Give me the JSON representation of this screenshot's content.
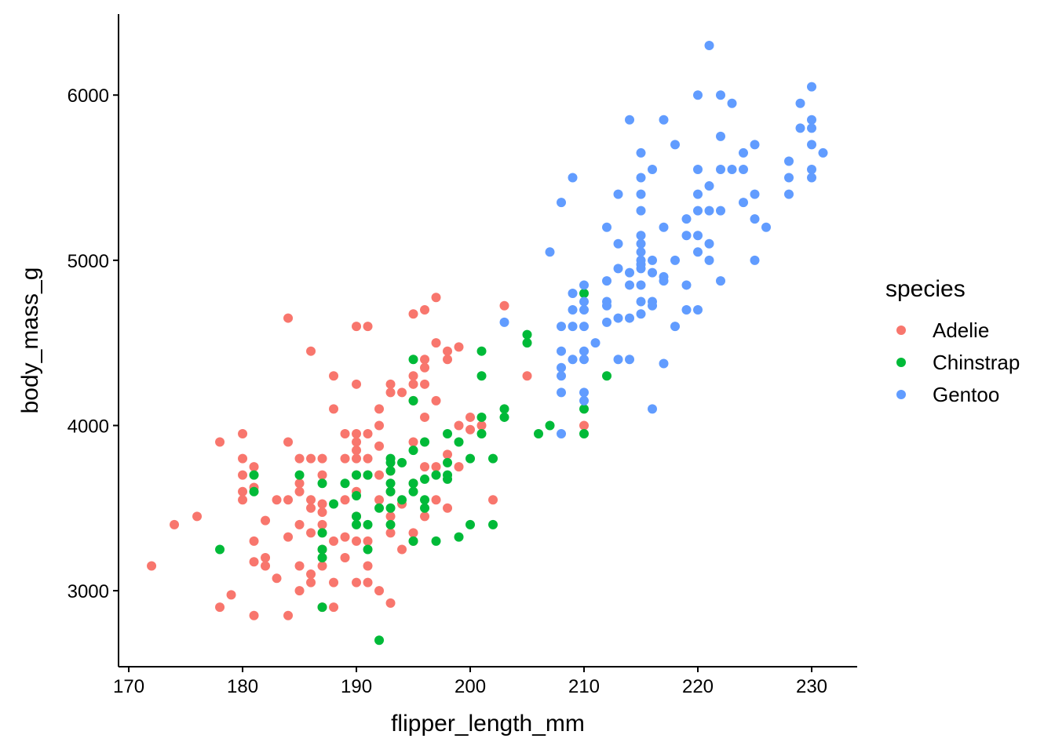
{
  "chart_data": {
    "type": "scatter",
    "title": "",
    "xlabel": "flipper_length_mm",
    "ylabel": "body_mass_g",
    "xlim": [
      169.1,
      234.0
    ],
    "ylim": [
      2540,
      6490
    ],
    "x_ticks": [
      170,
      180,
      190,
      200,
      210,
      220,
      230
    ],
    "y_ticks": [
      3000,
      4000,
      5000,
      6000
    ],
    "grid": false,
    "legend": {
      "title": "species",
      "placement": "right"
    },
    "series": [
      {
        "name": "Adelie",
        "color": "#F8766D",
        "points": [
          [
            172,
            3150
          ],
          [
            174,
            3400
          ],
          [
            176,
            3450
          ],
          [
            178,
            3900
          ],
          [
            178,
            2900
          ],
          [
            179,
            2975
          ],
          [
            180,
            3950
          ],
          [
            180,
            3800
          ],
          [
            180,
            3700
          ],
          [
            180,
            3600
          ],
          [
            180,
            3550
          ],
          [
            181,
            3750
          ],
          [
            181,
            3625
          ],
          [
            181,
            3300
          ],
          [
            181,
            3175
          ],
          [
            181,
            2850
          ],
          [
            182,
            3425
          ],
          [
            182,
            3200
          ],
          [
            182,
            3150
          ],
          [
            183,
            3550
          ],
          [
            183,
            3075
          ],
          [
            184,
            4650
          ],
          [
            184,
            3900
          ],
          [
            184,
            3550
          ],
          [
            184,
            3325
          ],
          [
            184,
            2850
          ],
          [
            185,
            3800
          ],
          [
            185,
            3650
          ],
          [
            185,
            3600
          ],
          [
            185,
            3400
          ],
          [
            185,
            3150
          ],
          [
            185,
            3000
          ],
          [
            186,
            4450
          ],
          [
            186,
            3800
          ],
          [
            186,
            3550
          ],
          [
            186,
            3500
          ],
          [
            186,
            3350
          ],
          [
            186,
            3100
          ],
          [
            186,
            3050
          ],
          [
            187,
            3800
          ],
          [
            187,
            3700
          ],
          [
            187,
            3525
          ],
          [
            187,
            3475
          ],
          [
            187,
            3400
          ],
          [
            187,
            3250
          ],
          [
            187,
            3150
          ],
          [
            187,
            2900
          ],
          [
            188,
            4300
          ],
          [
            188,
            4100
          ],
          [
            188,
            3300
          ],
          [
            188,
            3050
          ],
          [
            188,
            2900
          ],
          [
            189,
            3950
          ],
          [
            189,
            3800
          ],
          [
            189,
            3550
          ],
          [
            189,
            3325
          ],
          [
            189,
            3200
          ],
          [
            190,
            4600
          ],
          [
            190,
            4250
          ],
          [
            190,
            3950
          ],
          [
            190,
            3900
          ],
          [
            190,
            3850
          ],
          [
            190,
            3800
          ],
          [
            190,
            3700
          ],
          [
            190,
            3600
          ],
          [
            190,
            3450
          ],
          [
            190,
            3300
          ],
          [
            190,
            3050
          ],
          [
            191,
            4600
          ],
          [
            191,
            3950
          ],
          [
            191,
            3800
          ],
          [
            191,
            3700
          ],
          [
            191,
            3300
          ],
          [
            191,
            3150
          ],
          [
            191,
            3050
          ],
          [
            192,
            4100
          ],
          [
            192,
            4000
          ],
          [
            192,
            3875
          ],
          [
            192,
            3700
          ],
          [
            192,
            3550
          ],
          [
            192,
            3000
          ],
          [
            193,
            4250
          ],
          [
            193,
            4200
          ],
          [
            193,
            3725
          ],
          [
            193,
            3600
          ],
          [
            193,
            3450
          ],
          [
            193,
            3350
          ],
          [
            193,
            2925
          ],
          [
            194,
            4200
          ],
          [
            194,
            3525
          ],
          [
            194,
            3250
          ],
          [
            195,
            4675
          ],
          [
            195,
            4300
          ],
          [
            195,
            4250
          ],
          [
            195,
            4150
          ],
          [
            195,
            3900
          ],
          [
            195,
            3650
          ],
          [
            195,
            3350
          ],
          [
            195,
            3300
          ],
          [
            196,
            4700
          ],
          [
            196,
            4400
          ],
          [
            196,
            4350
          ],
          [
            196,
            4250
          ],
          [
            196,
            4050
          ],
          [
            196,
            3750
          ],
          [
            196,
            3450
          ],
          [
            197,
            4775
          ],
          [
            197,
            4500
          ],
          [
            197,
            4150
          ],
          [
            197,
            3750
          ],
          [
            197,
            3550
          ],
          [
            198,
            4450
          ],
          [
            198,
            4400
          ],
          [
            198,
            3825
          ],
          [
            198,
            3500
          ],
          [
            199,
            4475
          ],
          [
            199,
            4000
          ],
          [
            199,
            3750
          ],
          [
            200,
            4050
          ],
          [
            200,
            3975
          ],
          [
            201,
            4000
          ],
          [
            202,
            3550
          ],
          [
            203,
            4725
          ],
          [
            205,
            4300
          ],
          [
            210,
            4000
          ]
        ]
      },
      {
        "name": "Chinstrap",
        "color": "#00BA38",
        "points": [
          [
            178,
            3250
          ],
          [
            181,
            3700
          ],
          [
            181,
            3600
          ],
          [
            185,
            3700
          ],
          [
            187,
            3650
          ],
          [
            187,
            3350
          ],
          [
            187,
            3250
          ],
          [
            187,
            3200
          ],
          [
            187,
            2900
          ],
          [
            188,
            3525
          ],
          [
            189,
            3650
          ],
          [
            190,
            3700
          ],
          [
            190,
            3575
          ],
          [
            190,
            3450
          ],
          [
            190,
            3400
          ],
          [
            191,
            3700
          ],
          [
            191,
            3400
          ],
          [
            191,
            3250
          ],
          [
            192,
            3500
          ],
          [
            192,
            2700
          ],
          [
            193,
            3800
          ],
          [
            193,
            3775
          ],
          [
            193,
            3725
          ],
          [
            193,
            3650
          ],
          [
            193,
            3600
          ],
          [
            193,
            3500
          ],
          [
            193,
            3400
          ],
          [
            194,
            3775
          ],
          [
            194,
            3550
          ],
          [
            195,
            4400
          ],
          [
            195,
            4150
          ],
          [
            195,
            3850
          ],
          [
            195,
            3650
          ],
          [
            195,
            3600
          ],
          [
            195,
            3300
          ],
          [
            196,
            3900
          ],
          [
            196,
            3675
          ],
          [
            196,
            3550
          ],
          [
            196,
            3500
          ],
          [
            197,
            3700
          ],
          [
            197,
            3300
          ],
          [
            198,
            3950
          ],
          [
            198,
            3775
          ],
          [
            198,
            3700
          ],
          [
            198,
            3675
          ],
          [
            199,
            3900
          ],
          [
            199,
            3325
          ],
          [
            200,
            3800
          ],
          [
            200,
            3400
          ],
          [
            201,
            4450
          ],
          [
            201,
            4300
          ],
          [
            201,
            4050
          ],
          [
            201,
            3950
          ],
          [
            202,
            3800
          ],
          [
            202,
            3400
          ],
          [
            203,
            4100
          ],
          [
            203,
            4050
          ],
          [
            205,
            4550
          ],
          [
            205,
            4500
          ],
          [
            206,
            3950
          ],
          [
            207,
            4000
          ],
          [
            210,
            4800
          ],
          [
            210,
            4100
          ],
          [
            210,
            3950
          ],
          [
            212,
            4300
          ]
        ]
      },
      {
        "name": "Gentoo",
        "color": "#619CFF",
        "points": [
          [
            203,
            4625
          ],
          [
            207,
            5050
          ],
          [
            208,
            5350
          ],
          [
            208,
            4600
          ],
          [
            208,
            4450
          ],
          [
            208,
            4350
          ],
          [
            208,
            4300
          ],
          [
            208,
            4200
          ],
          [
            208,
            3950
          ],
          [
            209,
            5500
          ],
          [
            209,
            4800
          ],
          [
            209,
            4700
          ],
          [
            209,
            4600
          ],
          [
            209,
            4400
          ],
          [
            210,
            4850
          ],
          [
            210,
            4750
          ],
          [
            210,
            4700
          ],
          [
            210,
            4600
          ],
          [
            210,
            4450
          ],
          [
            210,
            4400
          ],
          [
            210,
            4200
          ],
          [
            210,
            4150
          ],
          [
            211,
            4500
          ],
          [
            212,
            5200
          ],
          [
            212,
            4875
          ],
          [
            212,
            4750
          ],
          [
            212,
            4725
          ],
          [
            212,
            4625
          ],
          [
            213,
            5400
          ],
          [
            213,
            5100
          ],
          [
            213,
            4950
          ],
          [
            213,
            4650
          ],
          [
            213,
            4400
          ],
          [
            214,
            5850
          ],
          [
            214,
            4925
          ],
          [
            214,
            4850
          ],
          [
            214,
            4650
          ],
          [
            214,
            4400
          ],
          [
            215,
            5650
          ],
          [
            215,
            5500
          ],
          [
            215,
            5400
          ],
          [
            215,
            5300
          ],
          [
            215,
            5150
          ],
          [
            215,
            5100
          ],
          [
            215,
            5050
          ],
          [
            215,
            5000
          ],
          [
            215,
            4975
          ],
          [
            215,
            4950
          ],
          [
            215,
            4850
          ],
          [
            215,
            4750
          ],
          [
            215,
            4675
          ],
          [
            216,
            5550
          ],
          [
            216,
            5000
          ],
          [
            216,
            4925
          ],
          [
            216,
            4750
          ],
          [
            216,
            4725
          ],
          [
            216,
            4100
          ],
          [
            217,
            5850
          ],
          [
            217,
            5200
          ],
          [
            217,
            4900
          ],
          [
            217,
            4875
          ],
          [
            217,
            4375
          ],
          [
            218,
            5700
          ],
          [
            218,
            5000
          ],
          [
            218,
            4600
          ],
          [
            219,
            5250
          ],
          [
            219,
            5150
          ],
          [
            219,
            4850
          ],
          [
            219,
            4700
          ],
          [
            220,
            6000
          ],
          [
            220,
            5550
          ],
          [
            220,
            5400
          ],
          [
            220,
            5300
          ],
          [
            220,
            5150
          ],
          [
            220,
            5050
          ],
          [
            220,
            4700
          ],
          [
            221,
            6300
          ],
          [
            221,
            5450
          ],
          [
            221,
            5300
          ],
          [
            221,
            5100
          ],
          [
            221,
            5000
          ],
          [
            222,
            6000
          ],
          [
            222,
            5750
          ],
          [
            222,
            5550
          ],
          [
            222,
            5300
          ],
          [
            222,
            4875
          ],
          [
            223,
            5950
          ],
          [
            223,
            5550
          ],
          [
            224,
            5650
          ],
          [
            224,
            5550
          ],
          [
            224,
            5350
          ],
          [
            225,
            5700
          ],
          [
            225,
            5400
          ],
          [
            225,
            5250
          ],
          [
            225,
            5000
          ],
          [
            226,
            5200
          ],
          [
            228,
            5600
          ],
          [
            228,
            5500
          ],
          [
            228,
            5400
          ],
          [
            229,
            5950
          ],
          [
            229,
            5800
          ],
          [
            230,
            6050
          ],
          [
            230,
            5850
          ],
          [
            230,
            5800
          ],
          [
            230,
            5700
          ],
          [
            230,
            5550
          ],
          [
            230,
            5500
          ],
          [
            231,
            5650
          ]
        ]
      }
    ]
  }
}
